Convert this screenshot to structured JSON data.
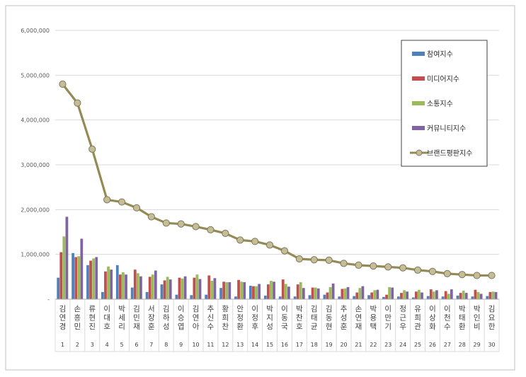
{
  "chart_data": {
    "type": "bar",
    "title": "",
    "xlabel": "",
    "ylabel": "",
    "ylim": [
      0,
      6000000
    ],
    "yticks": [
      "-",
      "1,000,000",
      "2,000,000",
      "3,000,000",
      "4,000,000",
      "5,000,000",
      "6,000,000"
    ],
    "grid": true,
    "legend_position": "top-right",
    "categories": [
      "김연경",
      "손흥민",
      "류현진",
      "이대호",
      "박세리",
      "김민재",
      "서장훈",
      "김하성",
      "이승엽",
      "김연아",
      "추신수",
      "황희찬",
      "안정환",
      "이정후",
      "박지성",
      "이동국",
      "박찬호",
      "김태균",
      "김동현",
      "추성훈",
      "손연재",
      "박용택",
      "이만기",
      "정근우",
      "유희관",
      "이상화",
      "이천수",
      "박태환",
      "박인비",
      "김요한"
    ],
    "ranks": [
      "1",
      "2",
      "3",
      "4",
      "5",
      "6",
      "7",
      "8",
      "9",
      "10",
      "11",
      "12",
      "13",
      "14",
      "15",
      "16",
      "17",
      "18",
      "19",
      "20",
      "21",
      "22",
      "23",
      "24",
      "25",
      "26",
      "27",
      "28",
      "29",
      "30"
    ],
    "series": [
      {
        "name": "참여지수",
        "type": "bar",
        "color": "#4F81BD",
        "values": [
          480000,
          1030000,
          760000,
          160000,
          760000,
          260000,
          160000,
          330000,
          100000,
          90000,
          100000,
          250000,
          60000,
          300000,
          80000,
          60000,
          60000,
          90000,
          100000,
          60000,
          70000,
          90000,
          50000,
          60000,
          40000,
          70000,
          60000,
          80000,
          60000,
          70000
        ]
      },
      {
        "name": "미디어지수",
        "type": "bar",
        "color": "#C0504D",
        "values": [
          1050000,
          940000,
          860000,
          620000,
          550000,
          660000,
          500000,
          420000,
          480000,
          480000,
          530000,
          390000,
          430000,
          290000,
          330000,
          440000,
          330000,
          260000,
          150000,
          230000,
          150000,
          150000,
          100000,
          140000,
          170000,
          220000,
          180000,
          140000,
          210000,
          160000
        ]
      },
      {
        "name": "소통지수",
        "type": "bar",
        "color": "#9BBB59",
        "values": [
          1400000,
          960000,
          910000,
          730000,
          600000,
          580000,
          550000,
          500000,
          460000,
          550000,
          410000,
          380000,
          390000,
          290000,
          410000,
          340000,
          380000,
          260000,
          270000,
          240000,
          250000,
          200000,
          270000,
          200000,
          210000,
          170000,
          120000,
          190000,
          160000,
          170000
        ]
      },
      {
        "name": "커뮤니티지수",
        "type": "bar",
        "color": "#8064A2",
        "values": [
          1840000,
          1350000,
          940000,
          660000,
          550000,
          510000,
          640000,
          440000,
          510000,
          450000,
          470000,
          380000,
          380000,
          340000,
          390000,
          280000,
          250000,
          240000,
          350000,
          270000,
          290000,
          210000,
          260000,
          170000,
          150000,
          200000,
          220000,
          140000,
          120000,
          160000
        ]
      },
      {
        "name": "브랜드평판지수",
        "type": "line",
        "color": "#948A54",
        "values": [
          4800000,
          4380000,
          3350000,
          2220000,
          2170000,
          2040000,
          1840000,
          1700000,
          1680000,
          1620000,
          1550000,
          1470000,
          1320000,
          1290000,
          1210000,
          1080000,
          900000,
          880000,
          870000,
          800000,
          760000,
          740000,
          720000,
          700000,
          650000,
          620000,
          570000,
          550000,
          530000,
          530000
        ]
      }
    ]
  }
}
